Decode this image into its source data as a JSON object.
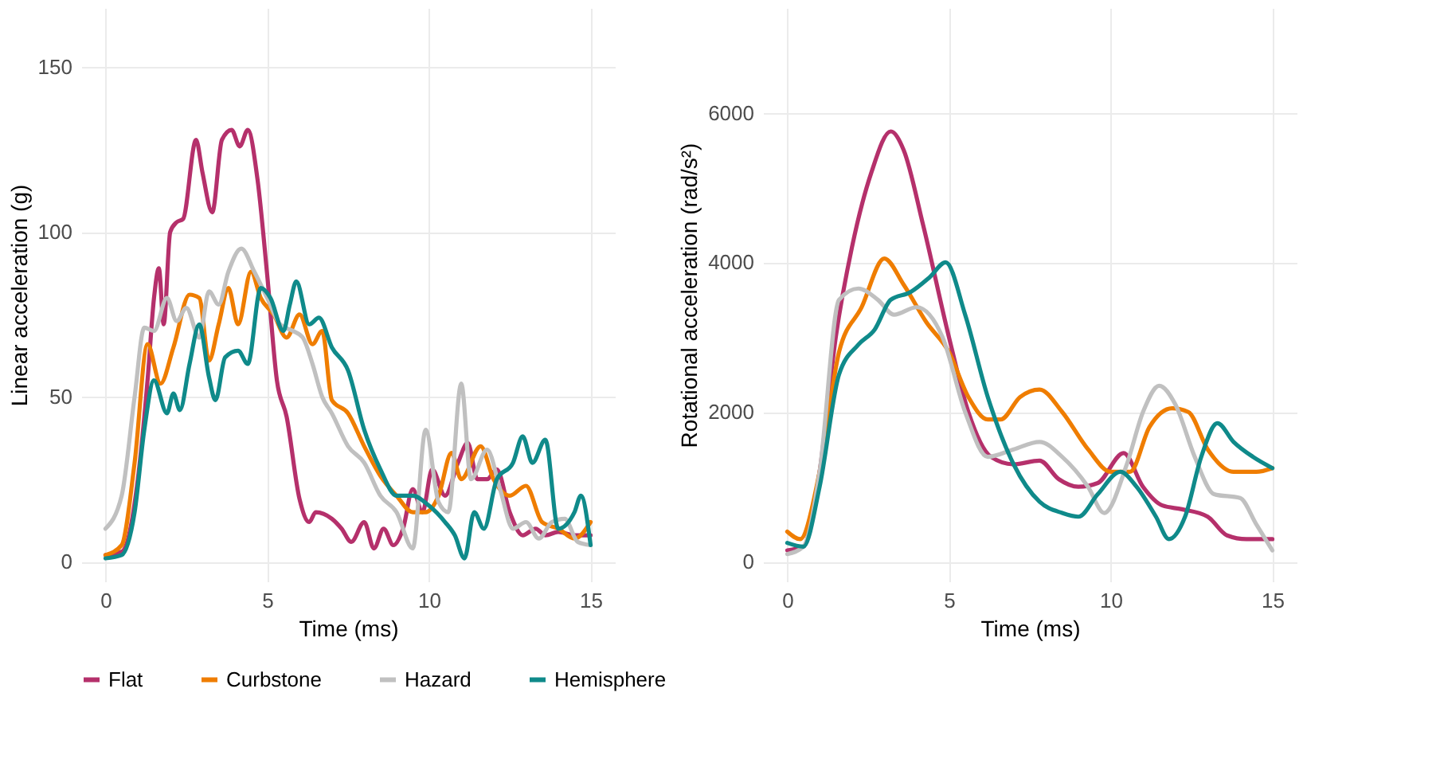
{
  "chart_data": [
    {
      "type": "line",
      "xlabel": "Time (ms)",
      "ylabel": "Linear acceleration (g)",
      "xlim": [
        -0.75,
        15.75
      ],
      "ylim": [
        -6,
        168
      ],
      "xticks": [
        0,
        5,
        10,
        15
      ],
      "yticks": [
        0,
        50,
        100,
        150
      ],
      "grid": true,
      "legend": "bottom",
      "line_style": "solid",
      "marker": "none",
      "series": [
        {
          "name": "Flat",
          "color": "#b5306b",
          "x": [
            0,
            0.5,
            1.0,
            1.3,
            1.5,
            1.65,
            1.8,
            2.0,
            2.2,
            2.4,
            2.8,
            3.0,
            3.3,
            3.6,
            3.9,
            4.15,
            4.4,
            4.7,
            5.0,
            5.3,
            5.6,
            6.0,
            6.3,
            6.5,
            7.0,
            7.3,
            7.6,
            8.0,
            8.3,
            8.6,
            8.9,
            9.2,
            9.5,
            9.8,
            10.1,
            10.5,
            10.9,
            11.2,
            11.5,
            11.8,
            12.1,
            12.5,
            12.9,
            13.3,
            13.6,
            14.0,
            14.5,
            15
          ],
          "values": [
            2,
            3,
            25,
            55,
            80,
            89,
            72,
            100,
            103,
            104,
            128,
            118,
            106,
            128,
            131,
            126,
            131,
            116,
            87,
            55,
            44,
            19,
            12,
            15,
            13,
            10,
            6,
            12,
            4,
            10,
            5,
            10,
            22,
            15,
            28,
            20,
            30,
            36,
            25,
            25,
            28,
            15,
            8,
            10,
            8,
            9,
            8,
            8
          ]
        },
        {
          "name": "Curbstone",
          "color": "#ef7d00",
          "x": [
            0,
            0.5,
            0.9,
            1.3,
            1.7,
            2.1,
            2.6,
            2.9,
            3.2,
            3.5,
            3.8,
            4.1,
            4.5,
            4.8,
            5.2,
            5.6,
            6.0,
            6.4,
            6.7,
            7.0,
            7.5,
            8.0,
            8.5,
            9.0,
            9.5,
            9.9,
            10.3,
            10.7,
            11.0,
            11.6,
            12.0,
            12.5,
            13.0,
            13.5,
            14.0,
            14.5,
            15
          ],
          "values": [
            2,
            5,
            30,
            66,
            54,
            65,
            81,
            80,
            61,
            72,
            83,
            72,
            88,
            80,
            75,
            68,
            75,
            66,
            70,
            49,
            45,
            35,
            26,
            20,
            15,
            15,
            20,
            33,
            25,
            35,
            25,
            20,
            23,
            12,
            10,
            7,
            12
          ]
        },
        {
          "name": "Hazard",
          "color": "#c0c0c0",
          "x": [
            0,
            0.5,
            0.9,
            1.2,
            1.5,
            1.9,
            2.2,
            2.5,
            2.9,
            3.2,
            3.5,
            3.8,
            4.2,
            4.6,
            5.0,
            5.4,
            5.8,
            6.1,
            6.4,
            6.7,
            7.0,
            7.5,
            8.0,
            8.5,
            9.0,
            9.5,
            9.9,
            10.3,
            10.6,
            11.0,
            11.3,
            11.8,
            12.2,
            12.6,
            13.0,
            13.4,
            13.8,
            14.2,
            14.6,
            15
          ],
          "values": [
            10,
            20,
            50,
            71,
            70,
            80,
            73,
            77,
            68,
            82,
            78,
            88,
            95,
            88,
            80,
            72,
            70,
            68,
            60,
            50,
            45,
            35,
            30,
            20,
            15,
            4,
            40,
            18,
            15,
            54,
            25,
            34,
            22,
            10,
            12,
            7,
            12,
            13,
            6,
            5
          ]
        },
        {
          "name": "Hemisphere",
          "color": "#0f8a8a",
          "x": [
            0,
            0.5,
            0.9,
            1.2,
            1.5,
            1.9,
            2.1,
            2.3,
            2.6,
            2.9,
            3.2,
            3.4,
            3.7,
            4.1,
            4.4,
            4.8,
            5.1,
            5.5,
            5.7,
            5.9,
            6.3,
            6.6,
            7.0,
            7.5,
            8.0,
            8.5,
            9.0,
            9.5,
            10.0,
            10.5,
            10.8,
            11.1,
            11.4,
            11.7,
            12.1,
            12.6,
            12.9,
            13.2,
            13.6,
            14.0,
            14.5,
            14.7,
            15
          ],
          "values": [
            1,
            2,
            15,
            40,
            55,
            45,
            51,
            46,
            60,
            72,
            56,
            49,
            62,
            64,
            60,
            83,
            80,
            70,
            78,
            85,
            72,
            74,
            65,
            58,
            40,
            28,
            20,
            20,
            17,
            12,
            8,
            1,
            15,
            10,
            25,
            30,
            38,
            30,
            37,
            10,
            15,
            20,
            5
          ]
        }
      ]
    },
    {
      "type": "line",
      "xlabel": "Time (ms)",
      "ylabel": "Rotational acceleration (rad/s²)",
      "xlim": [
        -0.75,
        15.75
      ],
      "ylim": [
        -265,
        7400
      ],
      "xticks": [
        0,
        5,
        10,
        15
      ],
      "yticks": [
        0,
        2000,
        4000,
        6000
      ],
      "grid": true,
      "legend": "bottom",
      "line_style": "solid",
      "marker": "none",
      "series": [
        {
          "name": "Flat",
          "color": "#b5306b",
          "x": [
            0,
            0.5,
            1.0,
            1.5,
            2.0,
            2.6,
            3.2,
            3.6,
            4.2,
            5.0,
            5.6,
            6.3,
            7.0,
            7.8,
            8.4,
            9.0,
            9.6,
            10.4,
            11.0,
            11.6,
            12.2,
            13.0,
            13.6,
            14.2,
            15
          ],
          "values": [
            150,
            200,
            1200,
            3000,
            4200,
            5200,
            5750,
            5500,
            4500,
            3000,
            2000,
            1400,
            1300,
            1350,
            1100,
            1000,
            1050,
            1450,
            1000,
            750,
            700,
            600,
            350,
            300,
            300
          ]
        },
        {
          "name": "Curbstone",
          "color": "#ef7d00",
          "x": [
            0,
            0.4,
            1.0,
            1.6,
            2.3,
            3.0,
            3.6,
            4.3,
            5.0,
            5.6,
            6.2,
            6.6,
            7.2,
            7.8,
            8.5,
            9.3,
            10.0,
            10.6,
            11.2,
            11.9,
            12.4,
            13.0,
            13.8,
            14.5,
            15
          ],
          "values": [
            400,
            300,
            1200,
            2800,
            3400,
            4050,
            3700,
            3200,
            2800,
            2200,
            1900,
            1900,
            2200,
            2300,
            2000,
            1500,
            1200,
            1200,
            1800,
            2050,
            2000,
            1500,
            1200,
            1200,
            1250
          ]
        },
        {
          "name": "Hazard",
          "color": "#c0c0c0",
          "x": [
            0,
            0.5,
            1.0,
            1.6,
            2.2,
            2.8,
            3.3,
            4.0,
            4.8,
            5.5,
            6.2,
            7.0,
            7.8,
            8.5,
            9.3,
            9.8,
            10.5,
            11.0,
            11.5,
            12.0,
            12.6,
            13.2,
            14.0,
            14.5,
            15
          ],
          "values": [
            100,
            200,
            1200,
            3500,
            3650,
            3500,
            3300,
            3400,
            3000,
            2000,
            1400,
            1500,
            1600,
            1400,
            1000,
            650,
            1300,
            2000,
            2350,
            2100,
            1400,
            900,
            850,
            500,
            150
          ]
        },
        {
          "name": "Hemisphere",
          "color": "#0f8a8a",
          "x": [
            0,
            0.5,
            1.0,
            1.6,
            2.2,
            2.7,
            3.2,
            3.8,
            4.4,
            4.9,
            5.5,
            6.2,
            7.0,
            7.8,
            8.5,
            9.0,
            9.6,
            10.3,
            10.8,
            11.4,
            11.8,
            12.3,
            12.8,
            13.3,
            13.8,
            14.4,
            15
          ],
          "values": [
            250,
            200,
            1000,
            2500,
            2900,
            3100,
            3500,
            3600,
            3800,
            4000,
            3300,
            2200,
            1300,
            800,
            650,
            600,
            900,
            1200,
            1000,
            600,
            300,
            600,
            1400,
            1850,
            1600,
            1400,
            1250
          ]
        }
      ]
    }
  ]
}
